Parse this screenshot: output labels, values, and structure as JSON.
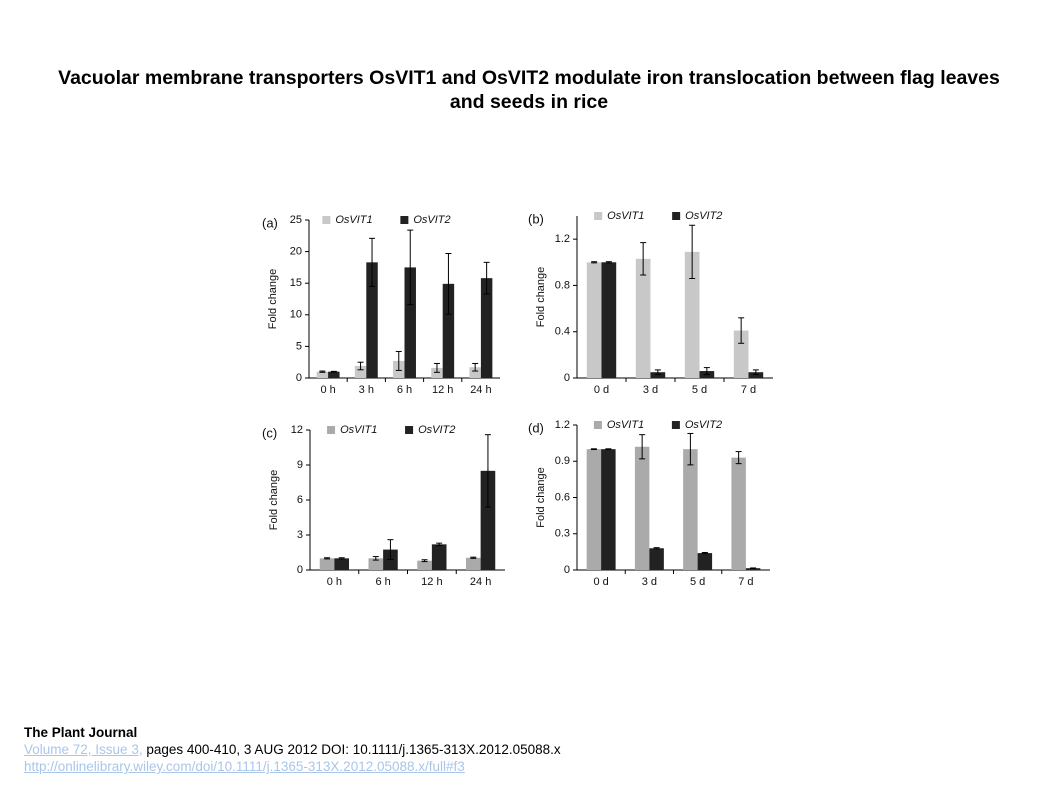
{
  "slide": {
    "title": "Vacuolar membrane transporters OsVIT1 and OsVIT2 modulate iron translocation between flag leaves and seeds in rice",
    "journal": "The Plant Journal",
    "issue_link": "Volume 72, Issue 3,",
    "citation": "pages 400-410, 3 AUG 2012 DOI: 10.1111/j.1365-313X.2012.05088.x",
    "url": "http://onlinelibrary.wiley.com/doi/10.1111/j.1365-313X.2012.05088.x/full#f3"
  },
  "chart_data": [
    {
      "type": "bar",
      "label": "(a)",
      "ylabel": "Fold change",
      "categories": [
        "0 h",
        "3 h",
        "6 h",
        "12 h",
        "24 h"
      ],
      "series": [
        {
          "name": "OsVIT1",
          "color": "#c8c8c8",
          "values": [
            1,
            1.9,
            2.7,
            1.6,
            1.7
          ],
          "errors": [
            0.1,
            0.6,
            1.5,
            0.7,
            0.6
          ]
        },
        {
          "name": "OsVIT2",
          "color": "#222222",
          "values": [
            1,
            18.3,
            17.5,
            14.9,
            15.8
          ],
          "errors": [
            0.05,
            3.8,
            5.9,
            4.8,
            2.5
          ]
        }
      ],
      "ylim": [
        0,
        25
      ],
      "yticks": [
        0,
        5,
        10,
        15,
        20,
        25
      ]
    },
    {
      "type": "bar",
      "label": "(b)",
      "ylabel": "Fold change",
      "categories": [
        "0 d",
        "3 d",
        "5 d",
        "7 d"
      ],
      "series": [
        {
          "name": "OsVIT1",
          "color": "#c8c8c8",
          "values": [
            1.0,
            1.03,
            1.09,
            0.41
          ],
          "errors": [
            0.005,
            0.14,
            0.23,
            0.11
          ]
        },
        {
          "name": "OsVIT2",
          "color": "#222222",
          "values": [
            1.0,
            0.05,
            0.06,
            0.05
          ],
          "errors": [
            0.005,
            0.02,
            0.03,
            0.02
          ]
        }
      ],
      "ylim": [
        0,
        1.4
      ],
      "yticks": [
        0,
        0.4,
        0.8,
        1.2
      ]
    },
    {
      "type": "bar",
      "label": "(c)",
      "ylabel": "Fold change",
      "categories": [
        "0 h",
        "6 h",
        "12 h",
        "24 h"
      ],
      "series": [
        {
          "name": "OsVIT1",
          "color": "#aaaaaa",
          "values": [
            1.0,
            1.0,
            0.8,
            1.05
          ],
          "errors": [
            0.05,
            0.15,
            0.08,
            0.05
          ]
        },
        {
          "name": "OsVIT2",
          "color": "#222222",
          "values": [
            1.0,
            1.75,
            2.2,
            8.5
          ],
          "errors": [
            0.05,
            0.85,
            0.1,
            3.1
          ]
        }
      ],
      "ylim": [
        0,
        12
      ],
      "yticks": [
        0,
        3,
        6,
        9,
        12
      ]
    },
    {
      "type": "bar",
      "label": "(d)",
      "ylabel": "Fold change",
      "categories": [
        "0 d",
        "3 d",
        "5 d",
        "7 d"
      ],
      "series": [
        {
          "name": "OsVIT1",
          "color": "#aaaaaa",
          "values": [
            1.0,
            1.02,
            1.0,
            0.93
          ],
          "errors": [
            0.003,
            0.1,
            0.13,
            0.05
          ]
        },
        {
          "name": "OsVIT2",
          "color": "#222222",
          "values": [
            1.0,
            0.18,
            0.14,
            0.015
          ],
          "errors": [
            0.003,
            0.005,
            0.005,
            0.002
          ]
        }
      ],
      "ylim": [
        0,
        1.2
      ],
      "yticks": [
        0,
        0.3,
        0.6,
        0.9,
        1.2
      ]
    }
  ]
}
